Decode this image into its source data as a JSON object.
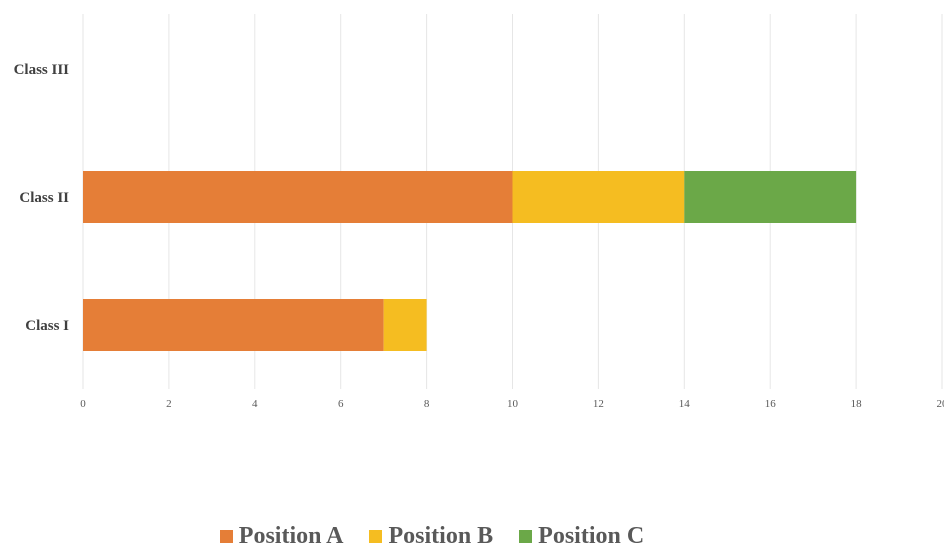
{
  "chart_data": {
    "type": "bar",
    "orientation": "horizontal",
    "stacked": true,
    "categories": [
      "Class I",
      "Class II",
      "Class III"
    ],
    "series": [
      {
        "name": "Position A",
        "values": [
          7,
          10,
          null
        ],
        "color": "#E57E37"
      },
      {
        "name": "Position B",
        "values": [
          1,
          4,
          null
        ],
        "color": "#F5BD21"
      },
      {
        "name": "Position C",
        "values": [
          0,
          4,
          null
        ],
        "color": "#6BA848"
      }
    ],
    "xlim": [
      0,
      20
    ],
    "xticks": [
      "0",
      "2",
      "4",
      "6",
      "8",
      "10",
      "12",
      "14",
      "16",
      "18",
      "20"
    ],
    "grid": true,
    "legend_position": "bottom",
    "title": "",
    "xlabel": "",
    "ylabel": ""
  }
}
